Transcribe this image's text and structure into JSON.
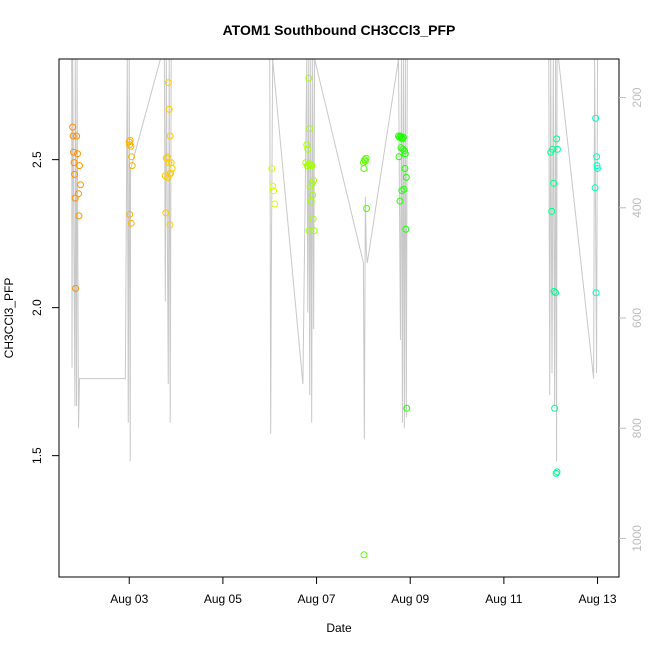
{
  "chart_data": {
    "type": "scatter",
    "title": "ATOM1 Southbound CH3CCl3_PFP",
    "xlabel": "Date",
    "ylabel": "CH3CCl3_PFP",
    "xlim": [
      "2016-08-01T12:00",
      "2016-08-13T11:00"
    ],
    "ylim": [
      1.09,
      2.84
    ],
    "x_ticks": [
      {
        "label": "Aug 03",
        "date": "2016-08-03"
      },
      {
        "label": "Aug 05",
        "date": "2016-08-05"
      },
      {
        "label": "Aug 07",
        "date": "2016-08-07"
      },
      {
        "label": "Aug 09",
        "date": "2016-08-09"
      },
      {
        "label": "Aug 11",
        "date": "2016-08-11"
      },
      {
        "label": "Aug 13",
        "date": "2016-08-13"
      }
    ],
    "y_ticks": [
      1.5,
      2.0,
      2.5
    ],
    "y2_label_color": "#bdbdbd",
    "y2_ticks": [
      200,
      400,
      600,
      800,
      1000
    ],
    "y2_lim": [
      1070,
      130
    ],
    "point_color_gradient": [
      "#ff8c00",
      "#ffff00",
      "#00ff00",
      "#00ffc0"
    ],
    "grid": false,
    "series": [
      {
        "values": [
          [
            "2016-08-01T19:00",
            2.61
          ],
          [
            "2016-08-01T19:15",
            2.58
          ],
          [
            "2016-08-01T19:30",
            2.525
          ],
          [
            "2016-08-01T19:45",
            2.49
          ],
          [
            "2016-08-01T20:00",
            2.45
          ],
          [
            "2016-08-01T20:15",
            2.37
          ],
          [
            "2016-08-01T20:30",
            2.065
          ],
          [
            "2016-08-01T21:00",
            2.58
          ],
          [
            "2016-08-01T21:30",
            2.52
          ],
          [
            "2016-08-01T22:00",
            2.385
          ],
          [
            "2016-08-01T22:15",
            2.31
          ],
          [
            "2016-08-01T22:30",
            2.48
          ],
          [
            "2016-08-01T23:00",
            2.415
          ],
          [
            "2016-08-03T00:00",
            2.56
          ],
          [
            "2016-08-03T00:10",
            2.55
          ],
          [
            "2016-08-03T00:30",
            2.565
          ],
          [
            "2016-08-03T00:50",
            2.545
          ],
          [
            "2016-08-03T01:10",
            2.51
          ],
          [
            "2016-08-03T01:30",
            2.48
          ],
          [
            "2016-08-03T00:15",
            2.315
          ],
          [
            "2016-08-03T01:00",
            2.285
          ],
          [
            "2016-08-03T20:00",
            2.76
          ],
          [
            "2016-08-03T20:30",
            2.67
          ],
          [
            "2016-08-03T21:00",
            2.58
          ],
          [
            "2016-08-03T19:00",
            2.505
          ],
          [
            "2016-08-03T19:30",
            2.51
          ],
          [
            "2016-08-03T20:15",
            2.49
          ],
          [
            "2016-08-03T21:30",
            2.49
          ],
          [
            "2016-08-03T22:00",
            2.47
          ],
          [
            "2016-08-03T18:30",
            2.445
          ],
          [
            "2016-08-03T19:45",
            2.44
          ],
          [
            "2016-08-03T20:45",
            2.45
          ],
          [
            "2016-08-03T21:15",
            2.455
          ],
          [
            "2016-08-03T18:45",
            2.32
          ],
          [
            "2016-08-03T20:50",
            2.28
          ],
          [
            "2016-08-06T01:00",
            2.47
          ],
          [
            "2016-08-06T01:30",
            2.41
          ],
          [
            "2016-08-06T02:00",
            2.395
          ],
          [
            "2016-08-06T02:30",
            2.35
          ],
          [
            "2016-08-06T20:00",
            2.775
          ],
          [
            "2016-08-06T20:30",
            2.605
          ],
          [
            "2016-08-06T19:00",
            2.55
          ],
          [
            "2016-08-06T19:30",
            2.535
          ],
          [
            "2016-08-06T18:30",
            2.49
          ],
          [
            "2016-08-06T19:15",
            2.48
          ],
          [
            "2016-08-06T20:15",
            2.485
          ],
          [
            "2016-08-06T21:00",
            2.485
          ],
          [
            "2016-08-06T21:30",
            2.48
          ],
          [
            "2016-08-06T20:45",
            2.41
          ],
          [
            "2016-08-06T21:45",
            2.42
          ],
          [
            "2016-08-06T22:30",
            2.43
          ],
          [
            "2016-08-06T22:00",
            2.38
          ],
          [
            "2016-08-06T21:15",
            2.36
          ],
          [
            "2016-08-06T22:15",
            2.3
          ],
          [
            "2016-08-06T20:10",
            2.26
          ],
          [
            "2016-08-06T22:45",
            2.26
          ],
          [
            "2016-08-08T00:00",
            2.49
          ],
          [
            "2016-08-08T00:15",
            2.47
          ],
          [
            "2016-08-08T00:40",
            2.5
          ],
          [
            "2016-08-08T01:00",
            2.495
          ],
          [
            "2016-08-08T01:20",
            2.505
          ],
          [
            "2016-08-08T01:40",
            2.335
          ],
          [
            "2016-08-08T00:20",
            1.165
          ],
          [
            "2016-08-08T18:00",
            2.58
          ],
          [
            "2016-08-08T18:30",
            2.575
          ],
          [
            "2016-08-08T19:00",
            2.58
          ],
          [
            "2016-08-08T19:30",
            2.575
          ],
          [
            "2016-08-08T20:00",
            2.57
          ],
          [
            "2016-08-08T20:30",
            2.575
          ],
          [
            "2016-08-08T21:00",
            2.53
          ],
          [
            "2016-08-08T21:30",
            2.52
          ],
          [
            "2016-08-08T18:15",
            2.51
          ],
          [
            "2016-08-08T19:15",
            2.54
          ],
          [
            "2016-08-08T20:15",
            2.535
          ],
          [
            "2016-08-08T21:15",
            2.47
          ],
          [
            "2016-08-08T22:00",
            2.44
          ],
          [
            "2016-08-08T19:45",
            2.395
          ],
          [
            "2016-08-08T20:45",
            2.4
          ],
          [
            "2016-08-08T18:45",
            2.36
          ],
          [
            "2016-08-08T21:45",
            2.265
          ],
          [
            "2016-08-08T22:15",
            1.66
          ],
          [
            "2016-08-12T00:00",
            2.525
          ],
          [
            "2016-08-12T01:00",
            2.535
          ],
          [
            "2016-08-12T03:00",
            2.57
          ],
          [
            "2016-08-12T03:30",
            2.535
          ],
          [
            "2016-08-12T01:30",
            2.42
          ],
          [
            "2016-08-12T00:30",
            2.325
          ],
          [
            "2016-08-12T01:45",
            2.055
          ],
          [
            "2016-08-12T02:30",
            2.05
          ],
          [
            "2016-08-12T02:00",
            1.66
          ],
          [
            "2016-08-12T02:45",
            1.44
          ],
          [
            "2016-08-12T03:15",
            1.445
          ],
          [
            "2016-08-12T23:00",
            2.64
          ],
          [
            "2016-08-12T23:30",
            2.51
          ],
          [
            "2016-08-12T23:45",
            2.48
          ],
          [
            "2016-08-13T00:00",
            2.47
          ],
          [
            "2016-08-12T22:45",
            2.405
          ],
          [
            "2016-08-12T23:15",
            2.05
          ]
        ]
      }
    ],
    "altitude_track": [
      [
        "2016-08-01T18:30",
        130
      ],
      [
        "2016-08-01T18:40",
        690
      ],
      [
        "2016-08-01T19:00",
        130
      ],
      [
        "2016-08-01T20:10",
        760
      ],
      [
        "2016-08-01T20:20",
        130
      ],
      [
        "2016-08-01T21:00",
        760
      ],
      [
        "2016-08-01T21:15",
        130
      ],
      [
        "2016-08-01T22:00",
        800
      ],
      [
        "2016-08-01T22:30",
        710
      ],
      [
        "2016-08-02T22:00",
        710
      ],
      [
        "2016-08-02T23:00",
        130
      ],
      [
        "2016-08-02T23:30",
        790
      ],
      [
        "2016-08-03T00:00",
        130
      ],
      [
        "2016-08-03T00:30",
        860
      ],
      [
        "2016-08-03T00:40",
        330
      ],
      [
        "2016-08-03T16:00",
        130
      ],
      [
        "2016-08-03T18:00",
        130
      ],
      [
        "2016-08-03T18:30",
        570
      ],
      [
        "2016-08-03T19:00",
        130
      ],
      [
        "2016-08-03T20:00",
        720
      ],
      [
        "2016-08-03T20:30",
        130
      ],
      [
        "2016-08-03T21:00",
        790
      ],
      [
        "2016-08-03T21:30",
        130
      ],
      [
        "2016-08-06T00:00",
        130
      ],
      [
        "2016-08-06T00:30",
        810
      ],
      [
        "2016-08-06T00:45",
        560
      ],
      [
        "2016-08-06T01:30",
        130
      ],
      [
        "2016-08-06T17:00",
        720
      ],
      [
        "2016-08-06T19:00",
        130
      ],
      [
        "2016-08-06T19:30",
        590
      ],
      [
        "2016-08-06T20:00",
        130
      ],
      [
        "2016-08-06T20:30",
        740
      ],
      [
        "2016-08-06T21:00",
        130
      ],
      [
        "2016-08-06T21:30",
        790
      ],
      [
        "2016-08-06T22:00",
        130
      ],
      [
        "2016-08-06T22:30",
        620
      ],
      [
        "2016-08-06T23:00",
        130
      ],
      [
        "2016-08-08T00:00",
        500
      ],
      [
        "2016-08-08T00:30",
        820
      ],
      [
        "2016-08-08T01:00",
        380
      ],
      [
        "2016-08-08T01:30",
        480
      ],
      [
        "2016-08-08T02:00",
        500
      ],
      [
        "2016-08-08T18:00",
        130
      ],
      [
        "2016-08-08T19:00",
        640
      ],
      [
        "2016-08-08T19:30",
        130
      ],
      [
        "2016-08-08T20:00",
        790
      ],
      [
        "2016-08-08T20:30",
        130
      ],
      [
        "2016-08-08T21:00",
        800
      ],
      [
        "2016-08-08T21:30",
        130
      ],
      [
        "2016-08-08T22:00",
        780
      ],
      [
        "2016-08-08T22:30",
        130
      ],
      [
        "2016-08-11T23:00",
        130
      ],
      [
        "2016-08-11T23:30",
        740
      ],
      [
        "2016-08-12T00:00",
        130
      ],
      [
        "2016-08-12T00:40",
        700
      ],
      [
        "2016-08-12T01:20",
        130
      ],
      [
        "2016-08-12T02:00",
        760
      ],
      [
        "2016-08-12T02:30",
        130
      ],
      [
        "2016-08-12T03:00",
        860
      ],
      [
        "2016-08-12T03:15",
        130
      ],
      [
        "2016-08-12T04:00",
        130
      ],
      [
        "2016-08-12T22:00",
        710
      ],
      [
        "2016-08-12T22:30",
        130
      ],
      [
        "2016-08-12T23:30",
        700
      ],
      [
        "2016-08-13T00:00",
        130
      ]
    ]
  }
}
